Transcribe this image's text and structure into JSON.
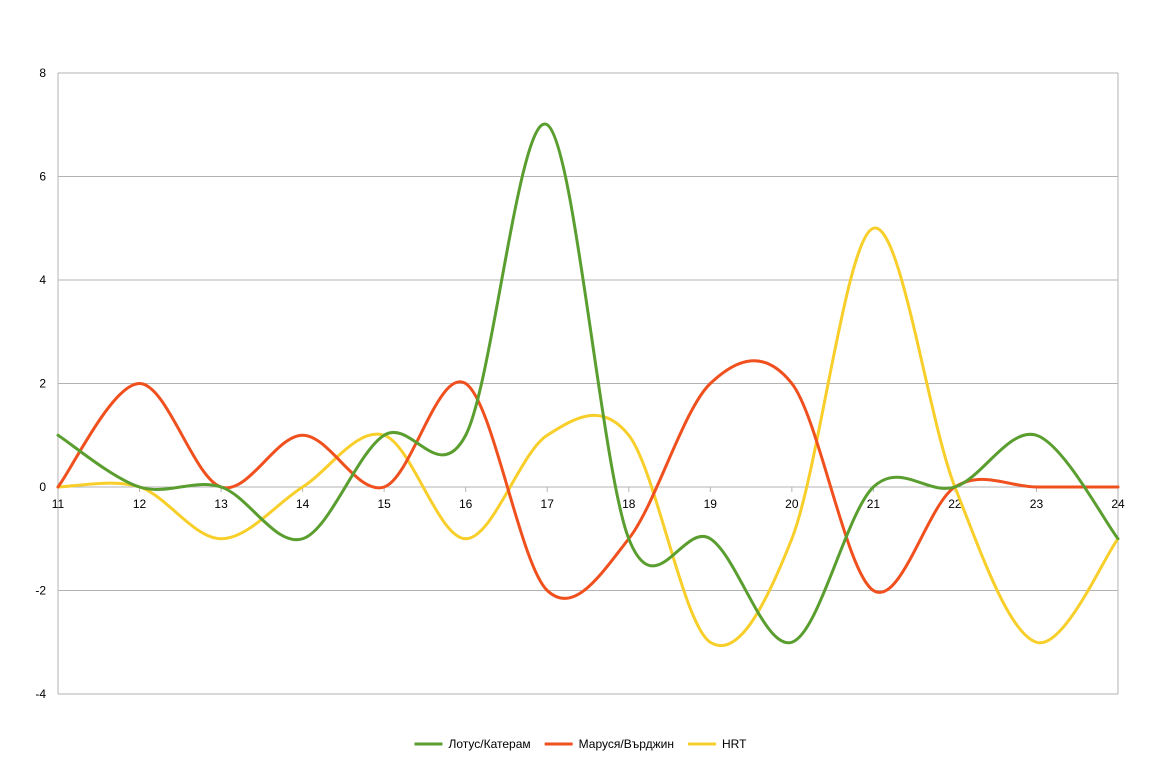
{
  "chart_data": {
    "type": "line",
    "smooth": true,
    "x": [
      11,
      12,
      13,
      14,
      15,
      16,
      17,
      18,
      19,
      20,
      21,
      22,
      23,
      24
    ],
    "ylim": [
      -4,
      8
    ],
    "y_ticks": [
      -4,
      -2,
      0,
      2,
      4,
      6,
      8
    ],
    "grid": true,
    "legend_position": "bottom",
    "series": [
      {
        "name": "Лотус/Катерам",
        "color": "#5a9e2f",
        "values": [
          1,
          0,
          0,
          -1,
          1,
          1,
          7,
          -1,
          -1,
          -3,
          0,
          0,
          1,
          -1
        ]
      },
      {
        "name": "Маруся/Върджин",
        "color": "#f0501e",
        "values": [
          0,
          2,
          0,
          1,
          0,
          2,
          -2,
          -1,
          2,
          2,
          -2,
          0,
          0,
          0
        ]
      },
      {
        "name": "HRT",
        "color": "#f8cf2a",
        "values": [
          0,
          0,
          -1,
          0,
          1,
          -1,
          1,
          1,
          -3,
          -1,
          5,
          0,
          -3,
          -1
        ]
      }
    ]
  }
}
